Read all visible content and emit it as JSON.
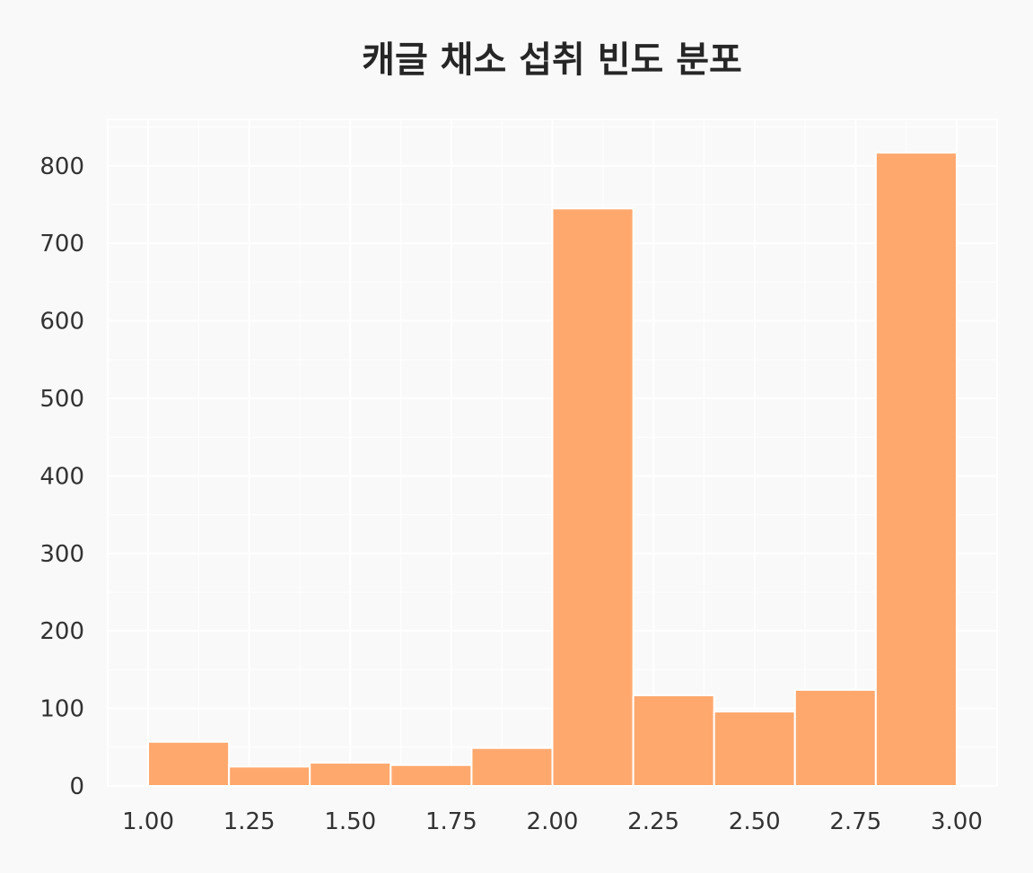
{
  "chart_data": {
    "type": "bar",
    "title": "캐글 채소 섭취 빈도 분포",
    "xlabel": "",
    "ylabel": "",
    "xlim": [
      0.9,
      3.1
    ],
    "ylim": [
      0,
      860
    ],
    "x_ticks": [
      "1.00",
      "1.25",
      "1.50",
      "1.75",
      "2.00",
      "2.25",
      "2.50",
      "2.75",
      "3.00"
    ],
    "x_tick_values": [
      1.0,
      1.25,
      1.5,
      1.75,
      2.0,
      2.25,
      2.5,
      2.75,
      3.0
    ],
    "y_ticks": [
      "0",
      "100",
      "200",
      "300",
      "400",
      "500",
      "600",
      "700",
      "800"
    ],
    "y_tick_values": [
      0,
      100,
      200,
      300,
      400,
      500,
      600,
      700,
      800
    ],
    "bins": [
      [
        1.0,
        1.2
      ],
      [
        1.2,
        1.4
      ],
      [
        1.4,
        1.6
      ],
      [
        1.6,
        1.8
      ],
      [
        1.8,
        2.0
      ],
      [
        2.0,
        2.2
      ],
      [
        2.2,
        2.4
      ],
      [
        2.4,
        2.6
      ],
      [
        2.6,
        2.8
      ],
      [
        2.8,
        3.0
      ]
    ],
    "values": [
      57,
      25,
      30,
      27,
      49,
      745,
      117,
      96,
      124,
      817
    ],
    "grid": true,
    "colors": {
      "bar": "#ffa86e",
      "background": "#f9f9f9",
      "plot_background": "#f9f9f9",
      "grid": "#ffffff"
    }
  }
}
